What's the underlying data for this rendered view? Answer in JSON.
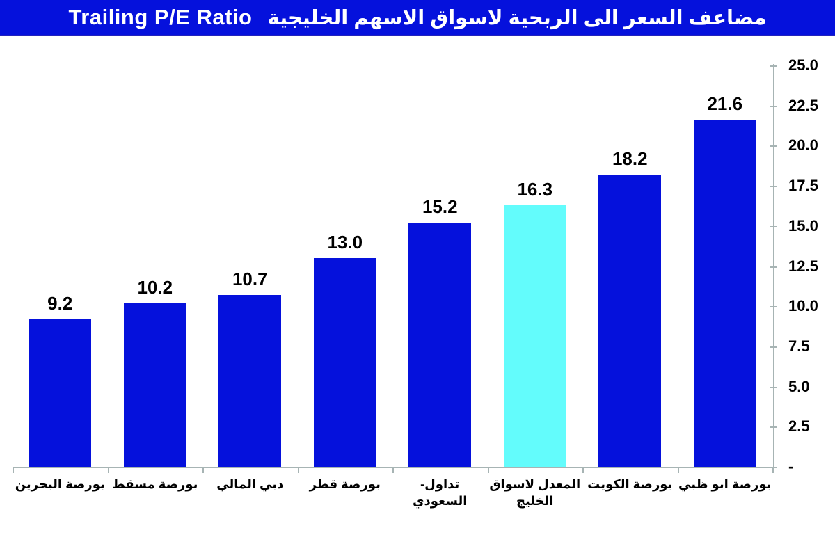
{
  "title": {
    "english": "Trailing P/E Ratio",
    "arabic": "مضاعف السعر الى الربحية لاسواق الاسهم الخليجية"
  },
  "colors": {
    "title_background": "#0511dc",
    "bar_default": "#0511dc",
    "bar_highlight": "#63fcfc",
    "axis": "#a7b4b4",
    "text": "#000000",
    "title_text": "#ffffff"
  },
  "chart_data": {
    "type": "bar",
    "title": "Trailing P/E Ratio مضاعف السعر الى الربحية لاسواق الاسهم الخليجية",
    "categories": [
      "بورصة البحرين",
      "بورصة مسقط",
      "دبي المالي",
      "بورصة قطر",
      "تداول- السعودي",
      "المعدل لاسواق\nالخليج",
      "بورصة الكويت",
      "بورصة ابو ظبي"
    ],
    "values": [
      9.2,
      10.2,
      10.7,
      13.0,
      15.2,
      16.3,
      18.2,
      21.6
    ],
    "value_labels": [
      "9.2",
      "10.2",
      "10.7",
      "13.0",
      "15.2",
      "16.3",
      "18.2",
      "21.6"
    ],
    "highlight_index": 5,
    "y_ticks": [
      "25.0",
      "22.5",
      "20.0",
      "17.5",
      "15.0",
      "12.5",
      "10.0",
      "7.5",
      "5.0",
      "2.5",
      "-"
    ],
    "y_tick_values": [
      25.0,
      22.5,
      20.0,
      17.5,
      15.0,
      12.5,
      10.0,
      7.5,
      5.0,
      2.5,
      0.0
    ],
    "ylim": [
      0,
      25
    ],
    "xlabel": "",
    "ylabel": "",
    "y_axis_side": "right",
    "grid": false,
    "legend": "none"
  }
}
